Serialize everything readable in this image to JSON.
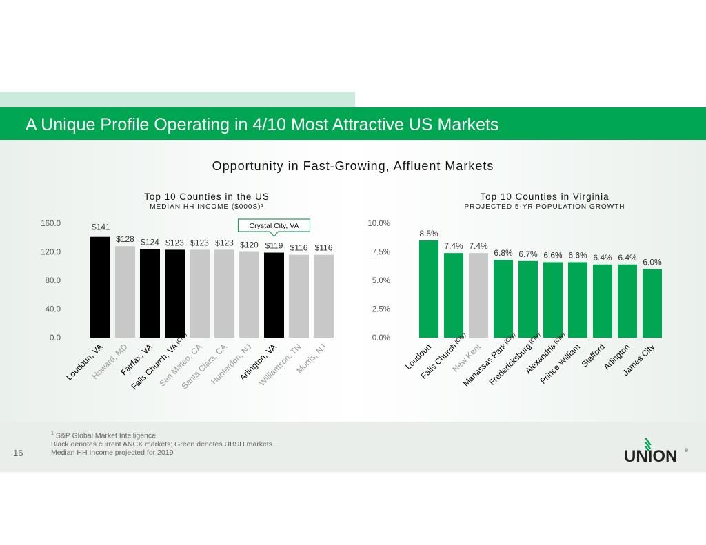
{
  "header": {
    "title": "A Unique Profile Operating in 4/10 Most Attractive US Markets"
  },
  "subtitle": "Opportunity in Fast-Growing, Affluent Markets",
  "colors": {
    "brand_green": "#00a651",
    "ancx_black": "#000000",
    "other_grey": "#c8c8c8",
    "callout_border": "#2e9e68"
  },
  "chart_data": [
    {
      "type": "bar",
      "title": "Top 10 Counties in the US",
      "subtitle": "MEDIAN HH INCOME ($000S)¹",
      "xlabel": "",
      "ylabel": "",
      "ylim": [
        0,
        160
      ],
      "yticks": [
        "0.0",
        "40.0",
        "80.0",
        "120.0",
        "160.0"
      ],
      "ytick_values": [
        0,
        40,
        80,
        120,
        160
      ],
      "grid": false,
      "categories": [
        "Loudoun, VA",
        "Howard, MD",
        "Fairfax, VA",
        "Falls Church, VA",
        "San Mateo, CA",
        "Santa Clara, CA",
        "Hunterdon, NJ",
        "Arlington, VA",
        "Williamson, TN",
        "Morris, NJ"
      ],
      "category_suffix": [
        "",
        "",
        "",
        "(City)",
        "",
        "",
        "",
        "",
        "",
        ""
      ],
      "values": [
        141,
        128,
        124,
        123,
        123,
        123,
        120,
        119,
        116,
        116
      ],
      "data_labels": [
        "$141",
        "$128",
        "$124",
        "$123",
        "$123",
        "$123",
        "$120",
        "$119",
        "$116",
        "$116"
      ],
      "bar_colors": [
        "#000000",
        "#c8c8c8",
        "#000000",
        "#000000",
        "#c8c8c8",
        "#c8c8c8",
        "#c8c8c8",
        "#000000",
        "#c8c8c8",
        "#c8c8c8"
      ],
      "label_colors": [
        "#000000",
        "#999999",
        "#000000",
        "#000000",
        "#999999",
        "#999999",
        "#999999",
        "#000000",
        "#999999",
        "#999999"
      ],
      "annotation": {
        "text": "Crystal City, VA",
        "target_index": 7
      }
    },
    {
      "type": "bar",
      "title": "Top 10 Counties in Virginia",
      "subtitle": "PROJECTED 5-YR POPULATION GROWTH",
      "xlabel": "",
      "ylabel": "",
      "ylim": [
        0,
        10
      ],
      "yticks": [
        "0.0%",
        "2.5%",
        "5.0%",
        "7.5%",
        "10.0%"
      ],
      "ytick_values": [
        0,
        2.5,
        5,
        7.5,
        10
      ],
      "grid": false,
      "categories": [
        "Loudoun",
        "Falls Church",
        "New Kent",
        "Manassas Park",
        "Fredericksburg",
        "Alexandria",
        "Prince William",
        "Stafford",
        "Arlington",
        "James City"
      ],
      "category_suffix": [
        "",
        "(City)",
        "",
        "(City)",
        "(City)",
        "(City)",
        "",
        "",
        "",
        ""
      ],
      "values": [
        8.5,
        7.4,
        7.4,
        6.8,
        6.7,
        6.6,
        6.6,
        6.4,
        6.4,
        6.0
      ],
      "data_labels": [
        "8.5%",
        "7.4%",
        "7.4%",
        "6.8%",
        "6.7%",
        "6.6%",
        "6.6%",
        "6.4%",
        "6.4%",
        "6.0%"
      ],
      "bar_colors": [
        "#00a651",
        "#00a651",
        "#c8c8c8",
        "#00a651",
        "#00a651",
        "#00a651",
        "#00a651",
        "#00a651",
        "#00a651",
        "#00a651"
      ],
      "label_colors": [
        "#000000",
        "#000000",
        "#999999",
        "#000000",
        "#000000",
        "#000000",
        "#000000",
        "#000000",
        "#000000",
        "#000000"
      ]
    }
  ],
  "footer": {
    "footnote_marker": "1",
    "lines": [
      "S&P Global Market Intelligence",
      "Black denotes current ANCX markets; Green denotes UBSH markets",
      "Median HH Income projected for 2019"
    ],
    "page_number": "16",
    "logo_text": "UNION",
    "logo_mark": "®"
  }
}
